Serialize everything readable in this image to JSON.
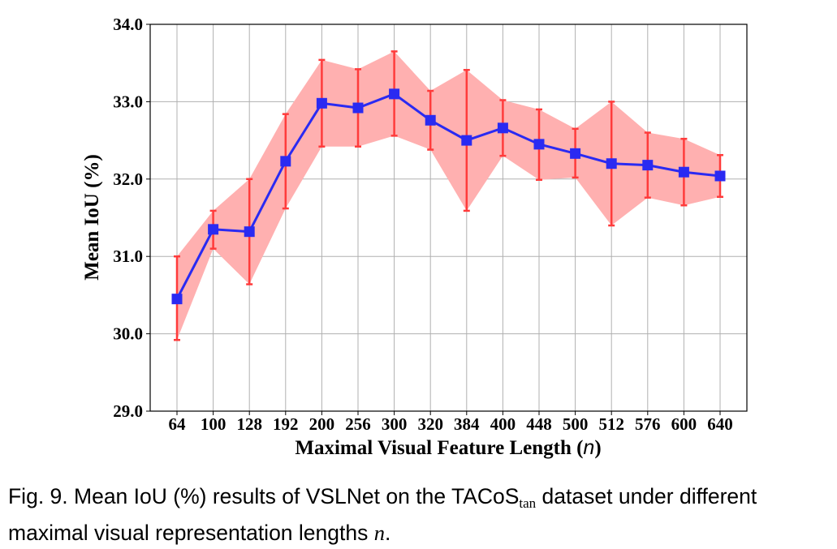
{
  "chart_data": {
    "type": "line",
    "xlabel": "Maximal Visual Feature Length (",
    "xlabel_var": "n",
    "xlabel_end": ")",
    "ylabel": "Mean IoU (%)",
    "categories": [
      "64",
      "100",
      "128",
      "192",
      "200",
      "256",
      "300",
      "320",
      "384",
      "400",
      "448",
      "500",
      "512",
      "576",
      "600",
      "640"
    ],
    "series": [
      {
        "values": [
          30.45,
          31.35,
          31.32,
          32.23,
          32.98,
          32.92,
          33.1,
          32.76,
          32.5,
          32.66,
          32.45,
          32.33,
          32.2,
          32.18,
          32.09,
          32.04
        ],
        "lower": [
          29.92,
          31.1,
          30.64,
          31.62,
          32.42,
          32.42,
          32.56,
          32.38,
          31.59,
          32.3,
          31.99,
          32.02,
          31.4,
          31.76,
          31.66,
          31.77
        ],
        "upper": [
          31.0,
          31.59,
          32.0,
          32.84,
          33.54,
          33.42,
          33.65,
          33.14,
          33.41,
          33.02,
          32.9,
          32.65,
          33.0,
          32.6,
          32.52,
          32.31
        ],
        "color": "#2a2af2",
        "band_color": "#ffb0b0",
        "errorbar_color": "#ff3b3b"
      }
    ],
    "y_ticks": [
      "29.0",
      "30.0",
      "31.0",
      "32.0",
      "33.0",
      "34.0"
    ],
    "ylim": [
      29.0,
      34.0
    ],
    "grid": true
  },
  "caption": {
    "prefix": "Fig. 9. Mean IoU (%) results of VSLNet on the TACoS",
    "subscript": "tan",
    "middle": " dataset under different maximal visual representation lengths ",
    "var": "n",
    "end": "."
  }
}
